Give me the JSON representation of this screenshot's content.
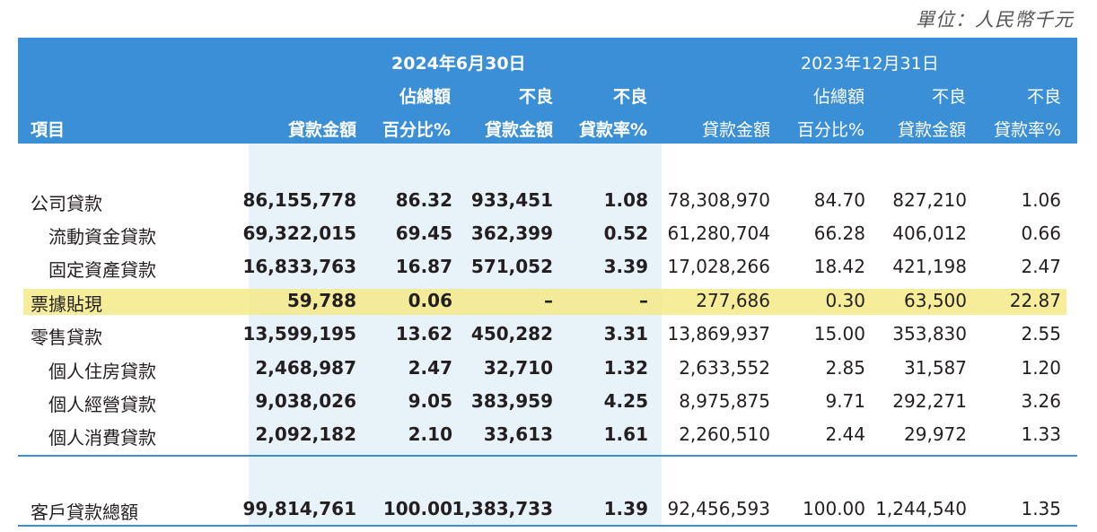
{
  "unit_label": "單位：人民幣千元",
  "header": {
    "period_2024": "2024年6月30日",
    "period_2023": "2023年12月31日",
    "item": "項目",
    "cols": [
      {
        "line1": "",
        "line2": "貸款金額"
      },
      {
        "line1": "佔總額",
        "line2": "百分比%"
      },
      {
        "line1": "不良",
        "line2": "貸款金額"
      },
      {
        "line1": "不良",
        "line2": "貸款率%"
      },
      {
        "line1": "",
        "line2": "貸款金額"
      },
      {
        "line1": "佔總額",
        "line2": "百分比%"
      },
      {
        "line1": "不良",
        "line2": "貸款金額"
      },
      {
        "line1": "不良",
        "line2": "貸款率%"
      }
    ]
  },
  "rows": [
    {
      "label": "公司貸款",
      "values": [
        "86,155,778",
        "86.32",
        "933,451",
        "1.08",
        "78,308,970",
        "84.70",
        "827,210",
        "1.06"
      ]
    },
    {
      "label": "流動資金貸款",
      "values": [
        "69,322,015",
        "69.45",
        "362,399",
        "0.52",
        "61,280,704",
        "66.28",
        "406,012",
        "0.66"
      ]
    },
    {
      "label": "固定資產貸款",
      "values": [
        "16,833,763",
        "16.87",
        "571,052",
        "3.39",
        "17,028,266",
        "18.42",
        "421,198",
        "2.47"
      ]
    },
    {
      "label": "票據貼現",
      "values": [
        "59,788",
        "0.06",
        "–",
        "–",
        "277,686",
        "0.30",
        "63,500",
        "22.87"
      ]
    },
    {
      "label": "零售貸款",
      "values": [
        "13,599,195",
        "13.62",
        "450,282",
        "3.31",
        "13,869,937",
        "15.00",
        "353,830",
        "2.55"
      ]
    },
    {
      "label": "個人住房貸款",
      "values": [
        "2,468,987",
        "2.47",
        "32,710",
        "1.32",
        "2,633,552",
        "2.85",
        "31,587",
        "1.20"
      ]
    },
    {
      "label": "個人經營貸款",
      "values": [
        "9,038,026",
        "9.05",
        "383,959",
        "4.25",
        "8,975,875",
        "9.71",
        "292,271",
        "3.26"
      ]
    },
    {
      "label": "個人消費貸款",
      "values": [
        "2,092,182",
        "2.10",
        "33,613",
        "1.61",
        "2,260,510",
        "2.44",
        "29,972",
        "1.33"
      ]
    }
  ],
  "total": {
    "label": "客戶貸款總額",
    "values": [
      "99,814,761",
      "100.00",
      "1,383,733",
      "1.39",
      "92,456,593",
      "100.00",
      "1,244,540",
      "1.35"
    ]
  },
  "colors": {
    "header_bg": "#3a8fd6",
    "column_shade": "#e8f2f9",
    "highlight": "#f5ea8a"
  }
}
